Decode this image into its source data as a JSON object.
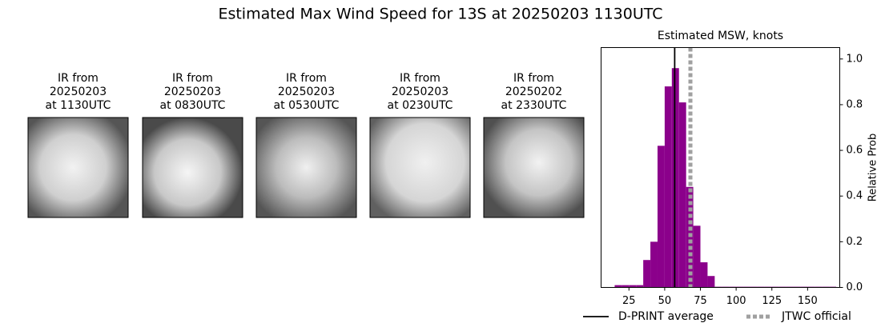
{
  "title": "Estimated Max Wind Speed for 13S at 20250203 1130UTC",
  "panels": [
    {
      "lines": [
        "IR from",
        "20250203",
        "at 1130UTC"
      ]
    },
    {
      "lines": [
        "IR from",
        "20250203",
        "at 0830UTC"
      ]
    },
    {
      "lines": [
        "IR from",
        "20250203",
        "at 0530UTC"
      ]
    },
    {
      "lines": [
        "IR from",
        "20250203",
        "at 0230UTC"
      ]
    },
    {
      "lines": [
        "IR from",
        "20250202",
        "at 2330UTC"
      ]
    }
  ],
  "chart_data": {
    "type": "histogram",
    "title": "Estimated MSW, knots",
    "ylabel": "Relative Prob",
    "color": "#8b008b",
    "bins": [
      15,
      20,
      25,
      30,
      35,
      40,
      45,
      50,
      55,
      60,
      65,
      70,
      75,
      80,
      85,
      90,
      95,
      100,
      105,
      110,
      115,
      120,
      125,
      130,
      135,
      140,
      145,
      150,
      155,
      160,
      165,
      170
    ],
    "counts": [
      0.01,
      0.01,
      0.01,
      0.01,
      0.12,
      0.2,
      0.62,
      0.88,
      0.96,
      0.81,
      0.44,
      0.27,
      0.11,
      0.05,
      0.003,
      0.003,
      0.003,
      0.003,
      0.003,
      0.003,
      0.003,
      0.003,
      0.003,
      0.003,
      0.003,
      0.003,
      0.003,
      0.003,
      0.003,
      0.003,
      0.003
    ],
    "xlim": [
      5.5,
      172.5
    ],
    "ylim": [
      0,
      1.05
    ],
    "xticks": [
      25,
      50,
      75,
      100,
      125,
      150
    ],
    "yticks": [
      {
        "value": 0,
        "label": "0.0"
      },
      0.2,
      0.4,
      0.6,
      0.8,
      {
        "value": 1,
        "label": "1.0"
      }
    ],
    "vlines": [
      {
        "name": "D-PRINT average",
        "value": 57,
        "color": "#000000",
        "style": "solid"
      },
      {
        "name": "JTWC official",
        "value": 68,
        "color": "#a0a0a0",
        "style": "dotted"
      }
    ]
  }
}
